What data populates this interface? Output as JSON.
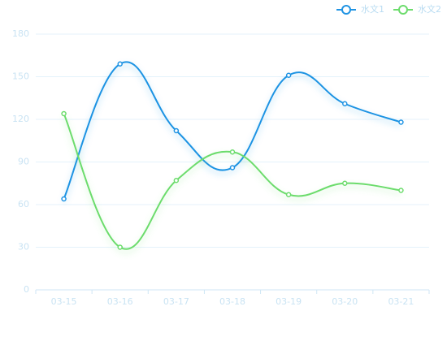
{
  "chart_data": {
    "type": "line",
    "smooth": true,
    "grid": true,
    "legend": "top-right",
    "categories": [
      "03-15",
      "03-16",
      "03-17",
      "03-18",
      "03-19",
      "03-20",
      "03-21"
    ],
    "series": [
      {
        "name": "水文1",
        "color": "#1f93e3",
        "values": [
          64,
          159,
          112,
          86,
          151,
          131,
          118
        ]
      },
      {
        "name": "水文2",
        "color": "#6cdc6c",
        "values": [
          124,
          30,
          77,
          97,
          67,
          75,
          70
        ]
      }
    ],
    "ylim": [
      0,
      180
    ],
    "yticks": [
      0,
      30,
      60,
      90,
      120,
      150,
      180
    ]
  }
}
